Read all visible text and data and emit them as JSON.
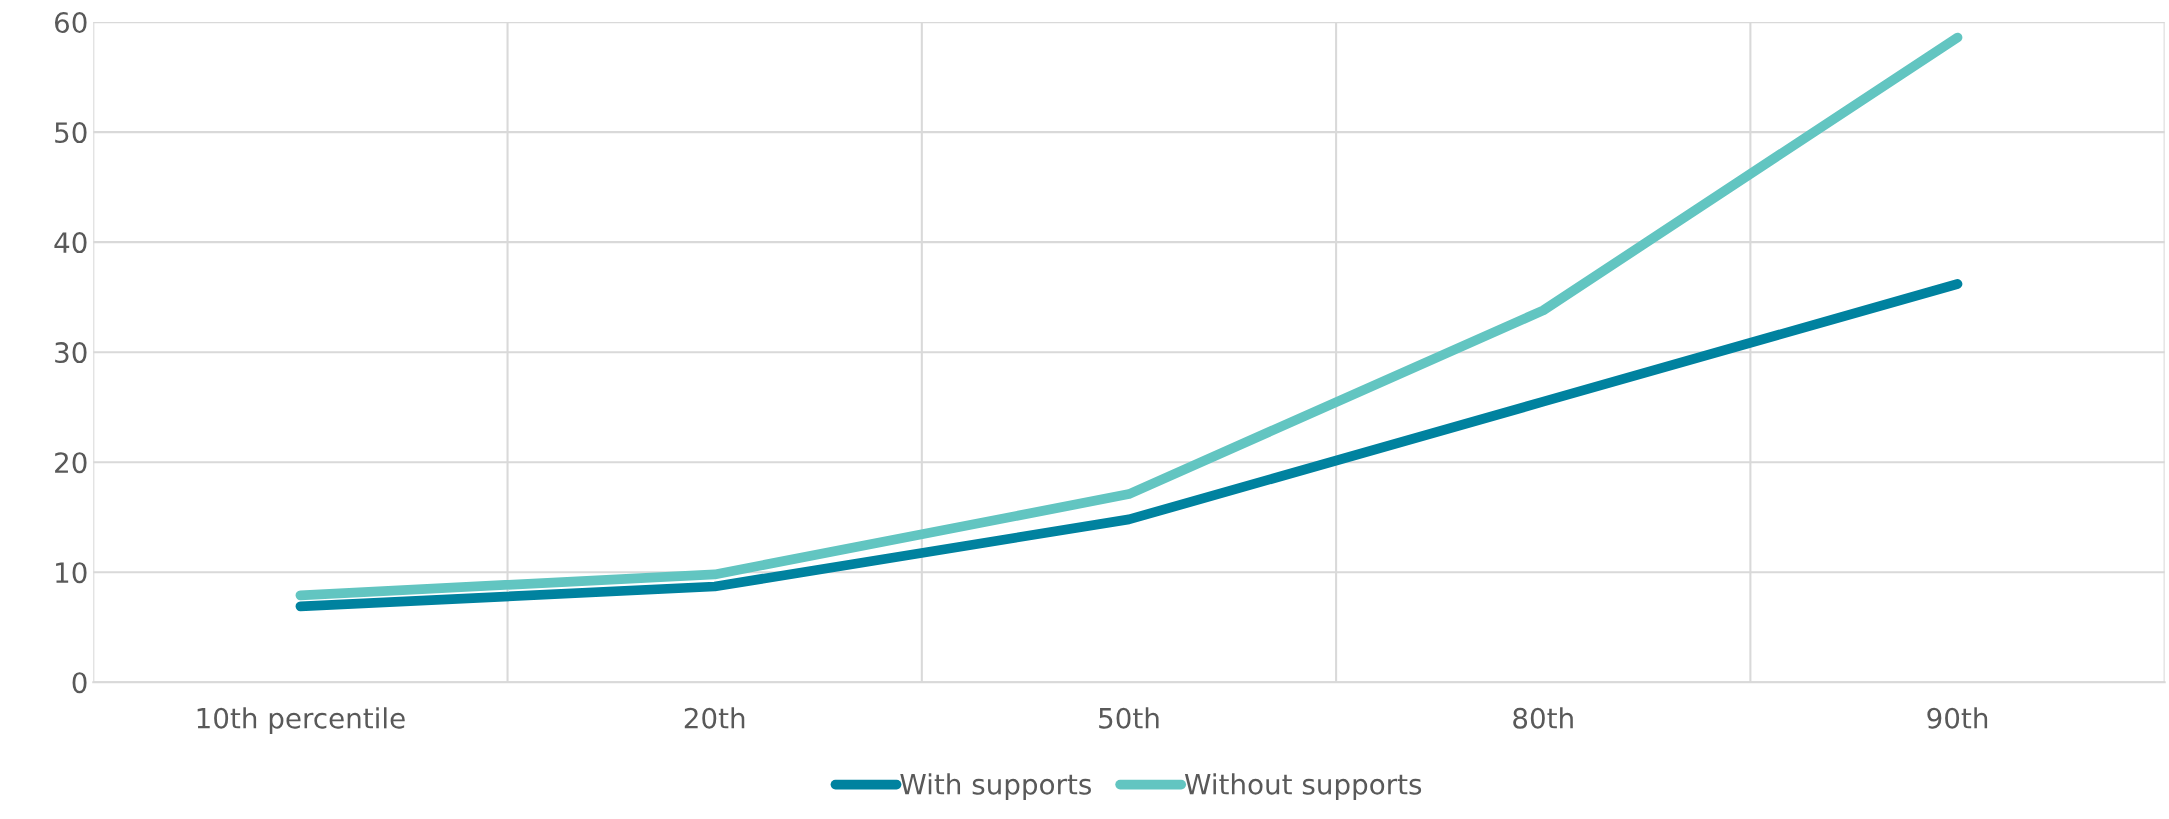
{
  "chart_data": {
    "type": "line",
    "categories": [
      "10th percentile",
      "20th",
      "50th",
      "80th",
      "90th"
    ],
    "series": [
      {
        "name": "With supports",
        "color": "#00829f",
        "values": [
          6.9,
          8.7,
          14.8,
          25.5,
          36.2
        ]
      },
      {
        "name": "Without supports",
        "color": "#62c5c1",
        "values": [
          7.9,
          9.8,
          17.1,
          33.8,
          58.6
        ]
      }
    ],
    "ylim": [
      0,
      60
    ],
    "yticks": [
      0,
      10,
      20,
      30,
      40,
      50,
      60
    ],
    "grid": true,
    "legend": "bottom",
    "marker": "none",
    "line_style": "solid"
  }
}
